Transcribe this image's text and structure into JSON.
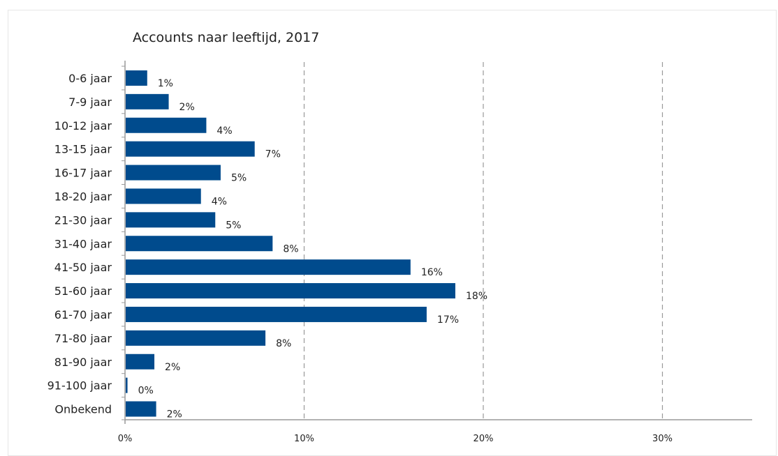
{
  "chart_data": {
    "type": "bar",
    "orientation": "horizontal",
    "title": "Accounts naar leeftijd, 2017",
    "xlabel": "",
    "ylabel": "",
    "categories": [
      "0-6 jaar",
      "7-9 jaar",
      "10-12 jaar",
      "13-15 jaar",
      "16-17 jaar",
      "18-20 jaar",
      "21-30 jaar",
      "31-40 jaar",
      "41-50 jaar",
      "51-60 jaar",
      "61-70 jaar",
      "71-80 jaar",
      "81-90 jaar",
      "91-100 jaar",
      "Onbekend"
    ],
    "values": [
      1.2,
      2.4,
      4.5,
      7.2,
      5.3,
      4.2,
      5.0,
      8.2,
      15.9,
      18.4,
      16.8,
      7.8,
      1.6,
      0.1,
      1.7
    ],
    "data_labels": [
      "1%",
      "2%",
      "4%",
      "7%",
      "5%",
      "4%",
      "5%",
      "8%",
      "16%",
      "18%",
      "17%",
      "8%",
      "2%",
      "0%",
      "2%"
    ],
    "xlim": [
      0,
      35
    ],
    "xticks": [
      0,
      10,
      20,
      30
    ],
    "xtick_labels": [
      "0%",
      "10%",
      "20%",
      "30%"
    ],
    "grid": "vertical dashed",
    "legend": "none",
    "colors": {
      "bar": "#004b8d",
      "grid": "#999999",
      "axis": "#999999"
    }
  }
}
